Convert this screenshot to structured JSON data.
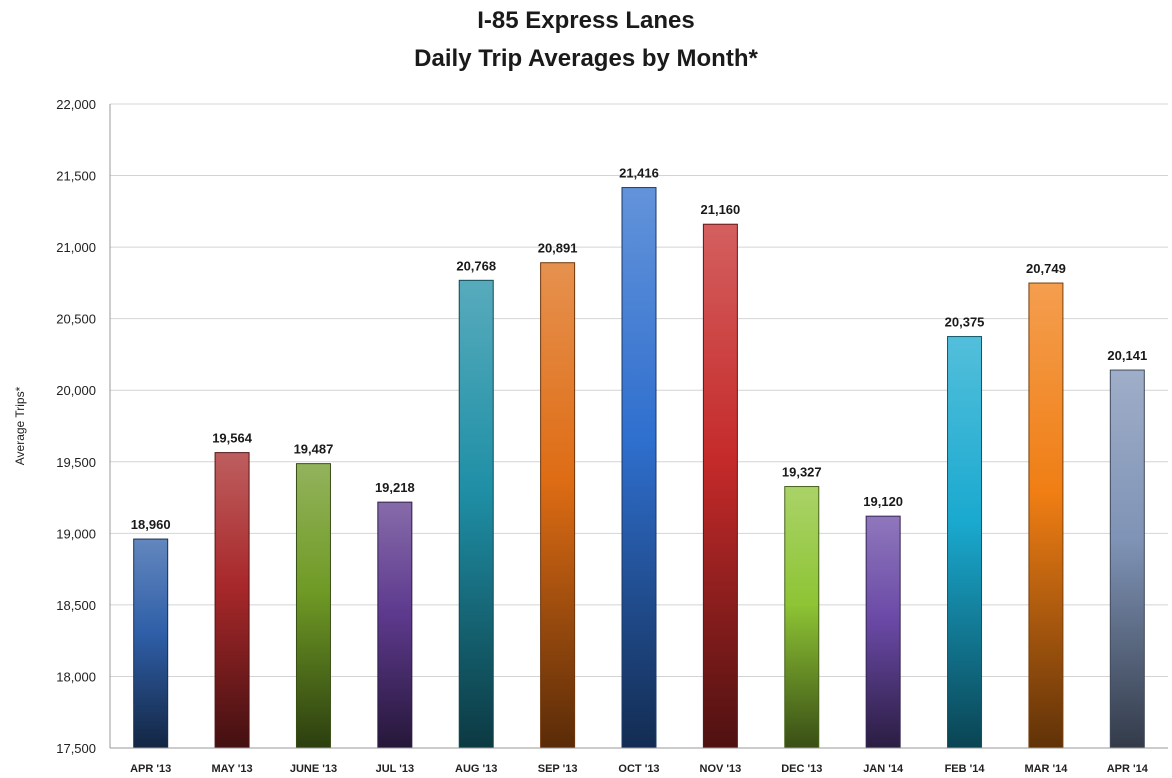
{
  "chart_data": {
    "type": "bar",
    "title_line1": "I-85 Express Lanes",
    "title_line2": "Daily Trip Averages by Month*",
    "xlabel": "",
    "ylabel": "Average Trips*",
    "ylim": [
      17500,
      22000
    ],
    "yticks": [
      17500,
      18000,
      18500,
      19000,
      19500,
      20000,
      20500,
      21000,
      21500,
      22000
    ],
    "ytick_labels": [
      "17,500",
      "18,000",
      "18,500",
      "19,000",
      "19,500",
      "20,000",
      "20,500",
      "21,000",
      "21,500",
      "22,000"
    ],
    "grid": true,
    "legend": "none",
    "categories": [
      "APR '13",
      "MAY '13",
      "JUNE '13",
      "JUL '13",
      "AUG '13",
      "SEP '13",
      "OCT '13",
      "NOV '13",
      "DEC '13",
      "JAN '14",
      "FEB '14",
      "MAR '14",
      "APR '14"
    ],
    "values": [
      18960,
      19564,
      19487,
      19218,
      20768,
      20891,
      21416,
      21160,
      19327,
      19120,
      20375,
      20749,
      20141
    ],
    "value_labels": [
      "18,960",
      "19,564",
      "19,487",
      "19,218",
      "20,768",
      "20,891",
      "21,416",
      "21,160",
      "19,327",
      "19,120",
      "20,375",
      "20,749",
      "20,141"
    ],
    "colors": [
      "#2f5fa8",
      "#a8282a",
      "#6f9a25",
      "#5e3a8e",
      "#1f8fa6",
      "#de6c14",
      "#2f6fce",
      "#c52a2a",
      "#8ec435",
      "#6a49a6",
      "#1aa9cf",
      "#f07e14",
      "#7f93b6"
    ]
  }
}
